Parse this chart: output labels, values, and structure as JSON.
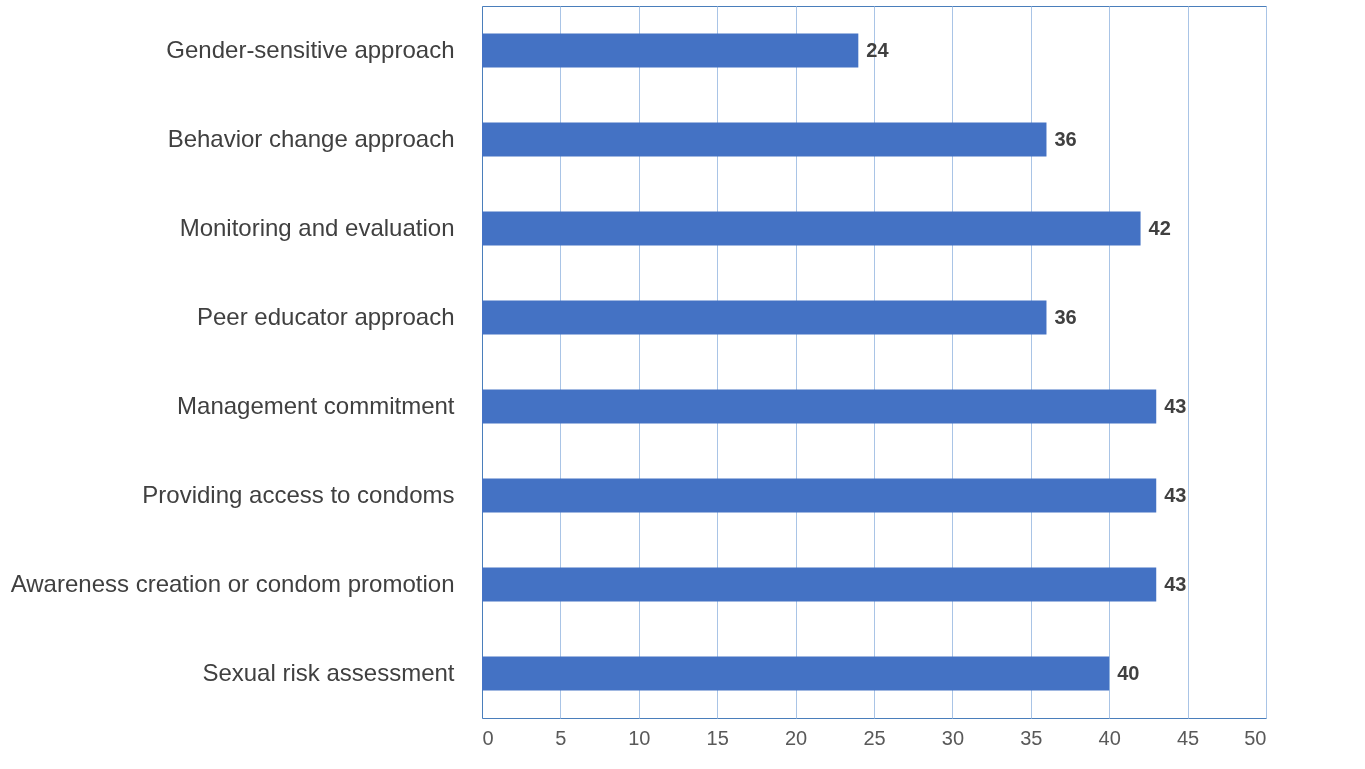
{
  "chart_data": {
    "type": "bar",
    "orientation": "horizontal",
    "categories": [
      "Gender-sensitive approach",
      "Behavior change approach",
      "Monitoring and evaluation",
      "Peer educator approach",
      "Management commitment",
      "Providing access to condoms",
      "Awareness creation or condom promotion",
      "Sexual risk assessment"
    ],
    "values": [
      24,
      36,
      42,
      36,
      43,
      43,
      43,
      40
    ],
    "color": "#4472c4",
    "xlim": [
      0,
      50
    ],
    "xticks": [
      0,
      5,
      10,
      15,
      20,
      25,
      30,
      35,
      40,
      45,
      50
    ],
    "grid": "x",
    "data_labels": true
  }
}
